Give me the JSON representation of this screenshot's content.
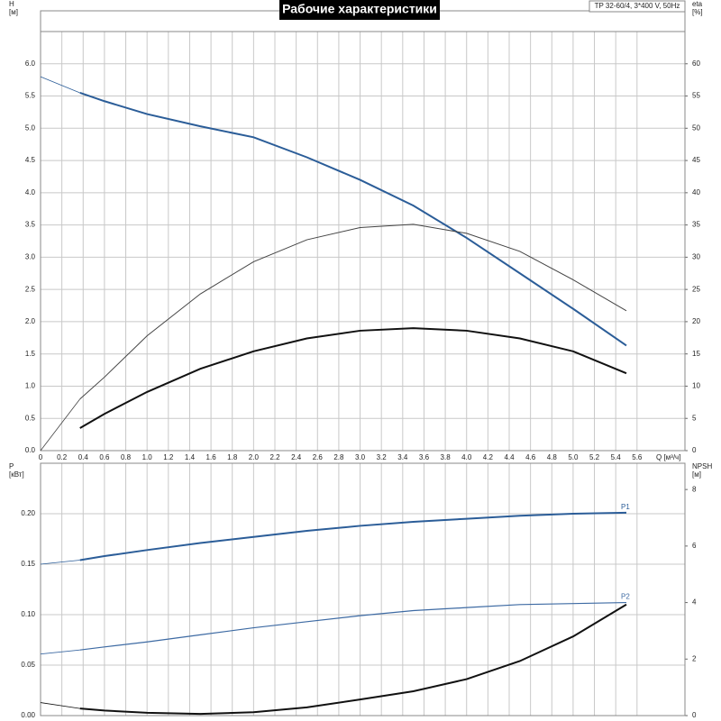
{
  "chart_data": [
    {
      "type": "line",
      "title": "Рабочие характеристики",
      "subtitle": "TP 32-60/4, 3*400 V, 50Hz",
      "x_label": "Q [м³/ч]",
      "y_label": "H",
      "y_unit": "[м]",
      "y2_label": "eta",
      "y2_unit": "[%]",
      "x": [
        0,
        0.37,
        0.6,
        1.0,
        1.5,
        2.0,
        2.5,
        3.0,
        3.5,
        4.0,
        4.5,
        5.0,
        5.5
      ],
      "series": [
        {
          "color": "#2b5d98",
          "values": [
            5.8,
            5.55,
            5.42,
            5.22,
            5.03,
            4.86,
            4.55,
            4.2,
            3.8,
            3.3,
            2.75,
            2.2,
            1.63
          ]
        },
        {
          "color": "#444444",
          "axis": "y2",
          "values": [
            0,
            8,
            11.4,
            17.8,
            24.3,
            29.3,
            32.7,
            34.6,
            35.1,
            33.7,
            30.9,
            26.5,
            21.7
          ]
        },
        {
          "color": "#111111",
          "axis": "y2",
          "values": [
            null,
            3.5,
            5.7,
            9.1,
            12.7,
            15.4,
            17.4,
            18.6,
            19,
            18.6,
            17.4,
            15.4,
            12.0
          ]
        }
      ],
      "xlim": [
        0,
        6.05
      ],
      "xticks": [
        0,
        0.2,
        0.4,
        0.6,
        0.8,
        {
          "value": 1,
          "label": "1.0"
        },
        1.2,
        1.4,
        1.6,
        1.8,
        {
          "value": 2,
          "label": "2.0"
        },
        2.2,
        2.4,
        2.6,
        2.8,
        {
          "value": 3,
          "label": "3.0"
        },
        3.2,
        3.4,
        3.6,
        3.8,
        {
          "value": 4,
          "label": "4.0"
        },
        4.2,
        4.4,
        4.6,
        4.8,
        {
          "value": 5,
          "label": "5.0"
        },
        5.2,
        5.4,
        5.6
      ],
      "ylim": [
        0,
        6.5
      ],
      "yticks": [
        {
          "value": 0,
          "label": "0.0"
        },
        {
          "value": 0.5,
          "label": "0.5"
        },
        {
          "value": 1,
          "label": "1.0"
        },
        {
          "value": 1.5,
          "label": "1.5"
        },
        {
          "value": 2,
          "label": "2.0"
        },
        {
          "value": 2.5,
          "label": "2.5"
        },
        {
          "value": 3,
          "label": "3.0"
        },
        {
          "value": 3.5,
          "label": "3.5"
        },
        {
          "value": 4,
          "label": "4.0"
        },
        {
          "value": 4.5,
          "label": "4.5"
        },
        {
          "value": 5,
          "label": "5.0"
        },
        {
          "value": 5.5,
          "label": "5.5"
        },
        {
          "value": 6,
          "label": "6.0"
        }
      ],
      "y2lim": [
        0,
        65
      ],
      "y2ticks": [
        0,
        5,
        10,
        15,
        20,
        25,
        30,
        35,
        40,
        45,
        50,
        55,
        60
      ],
      "grid": true
    },
    {
      "type": "line",
      "y_label": "P",
      "y_unit": "[кВт]",
      "y2_label": "NPSH",
      "y2_unit": "[м]",
      "x": [
        0,
        0.37,
        0.6,
        1.0,
        1.5,
        2.0,
        2.5,
        3.0,
        3.5,
        4.0,
        4.5,
        5.0,
        5.5
      ],
      "series": [
        {
          "name": "P1",
          "color": "#2b5d98",
          "values": [
            0.15,
            0.154,
            0.158,
            0.164,
            0.171,
            0.177,
            0.183,
            0.188,
            0.192,
            0.195,
            0.198,
            0.2,
            0.201
          ]
        },
        {
          "name": "P2",
          "color": "#3d6aa3",
          "values": [
            0.061,
            0.065,
            0.068,
            0.073,
            0.08,
            0.087,
            0.093,
            0.099,
            0.104,
            0.107,
            0.11,
            0.111,
            0.112
          ]
        },
        {
          "color": "#111111",
          "axis": "y2",
          "values": [
            0.46,
            0.25,
            0.18,
            0.1,
            0.06,
            0.12,
            0.29,
            0.57,
            0.86,
            1.29,
            1.93,
            2.8,
            3.93
          ]
        }
      ],
      "xlim": [
        0,
        6.05
      ],
      "ylim": [
        0,
        0.25
      ],
      "yticks": [
        {
          "value": 0,
          "label": "0.00"
        },
        {
          "value": 0.05,
          "label": "0.05"
        },
        {
          "value": 0.1,
          "label": "0.10"
        },
        {
          "value": 0.15,
          "label": "0.15"
        },
        {
          "value": 0.2,
          "label": "0.20"
        }
      ],
      "y2lim": [
        0,
        8.93
      ],
      "y2ticks": [
        0,
        2,
        4,
        6,
        8
      ],
      "grid": true
    }
  ]
}
